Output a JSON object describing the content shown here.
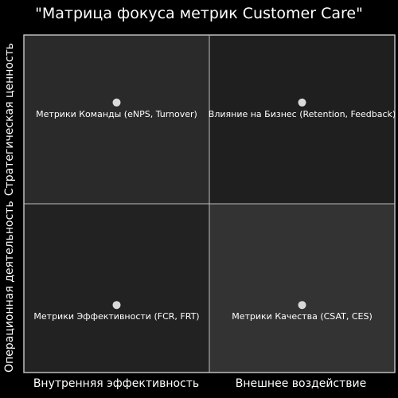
{
  "chart_data": {
    "type": "scatter",
    "title": "\"Матрица фокуса метрик Customer Care\"",
    "x_categories": [
      "Внутренняя эффективность",
      "Внешнее воздействие"
    ],
    "y_categories": [
      "Операционная деятельность",
      "Стратегическая ценность"
    ],
    "xlim": [
      0,
      2
    ],
    "ylim": [
      0,
      2
    ],
    "grid": true,
    "points": [
      {
        "label": "Метрики Команды (eNPS, Turnover)",
        "x": 0.5,
        "y": 1.6
      },
      {
        "label": "Влияние на Бизнес (Retention, Feedback)",
        "x": 1.5,
        "y": 1.6
      },
      {
        "label": "Метрики Эффективности (FCR, FRT)",
        "x": 0.5,
        "y": 0.4
      },
      {
        "label": "Метрики Качества (CSAT, CES)",
        "x": 1.5,
        "y": 0.4
      }
    ],
    "colors": {
      "background": "#000000",
      "quadrant_top_left": "#2a2a2a",
      "quadrant_top_right": "#1f1f1f",
      "quadrant_bottom_left": "#222222",
      "quadrant_bottom_right": "#333333",
      "divider": "#bdbdbd",
      "point": "#d9d9d9",
      "text": "#ffffff"
    }
  }
}
